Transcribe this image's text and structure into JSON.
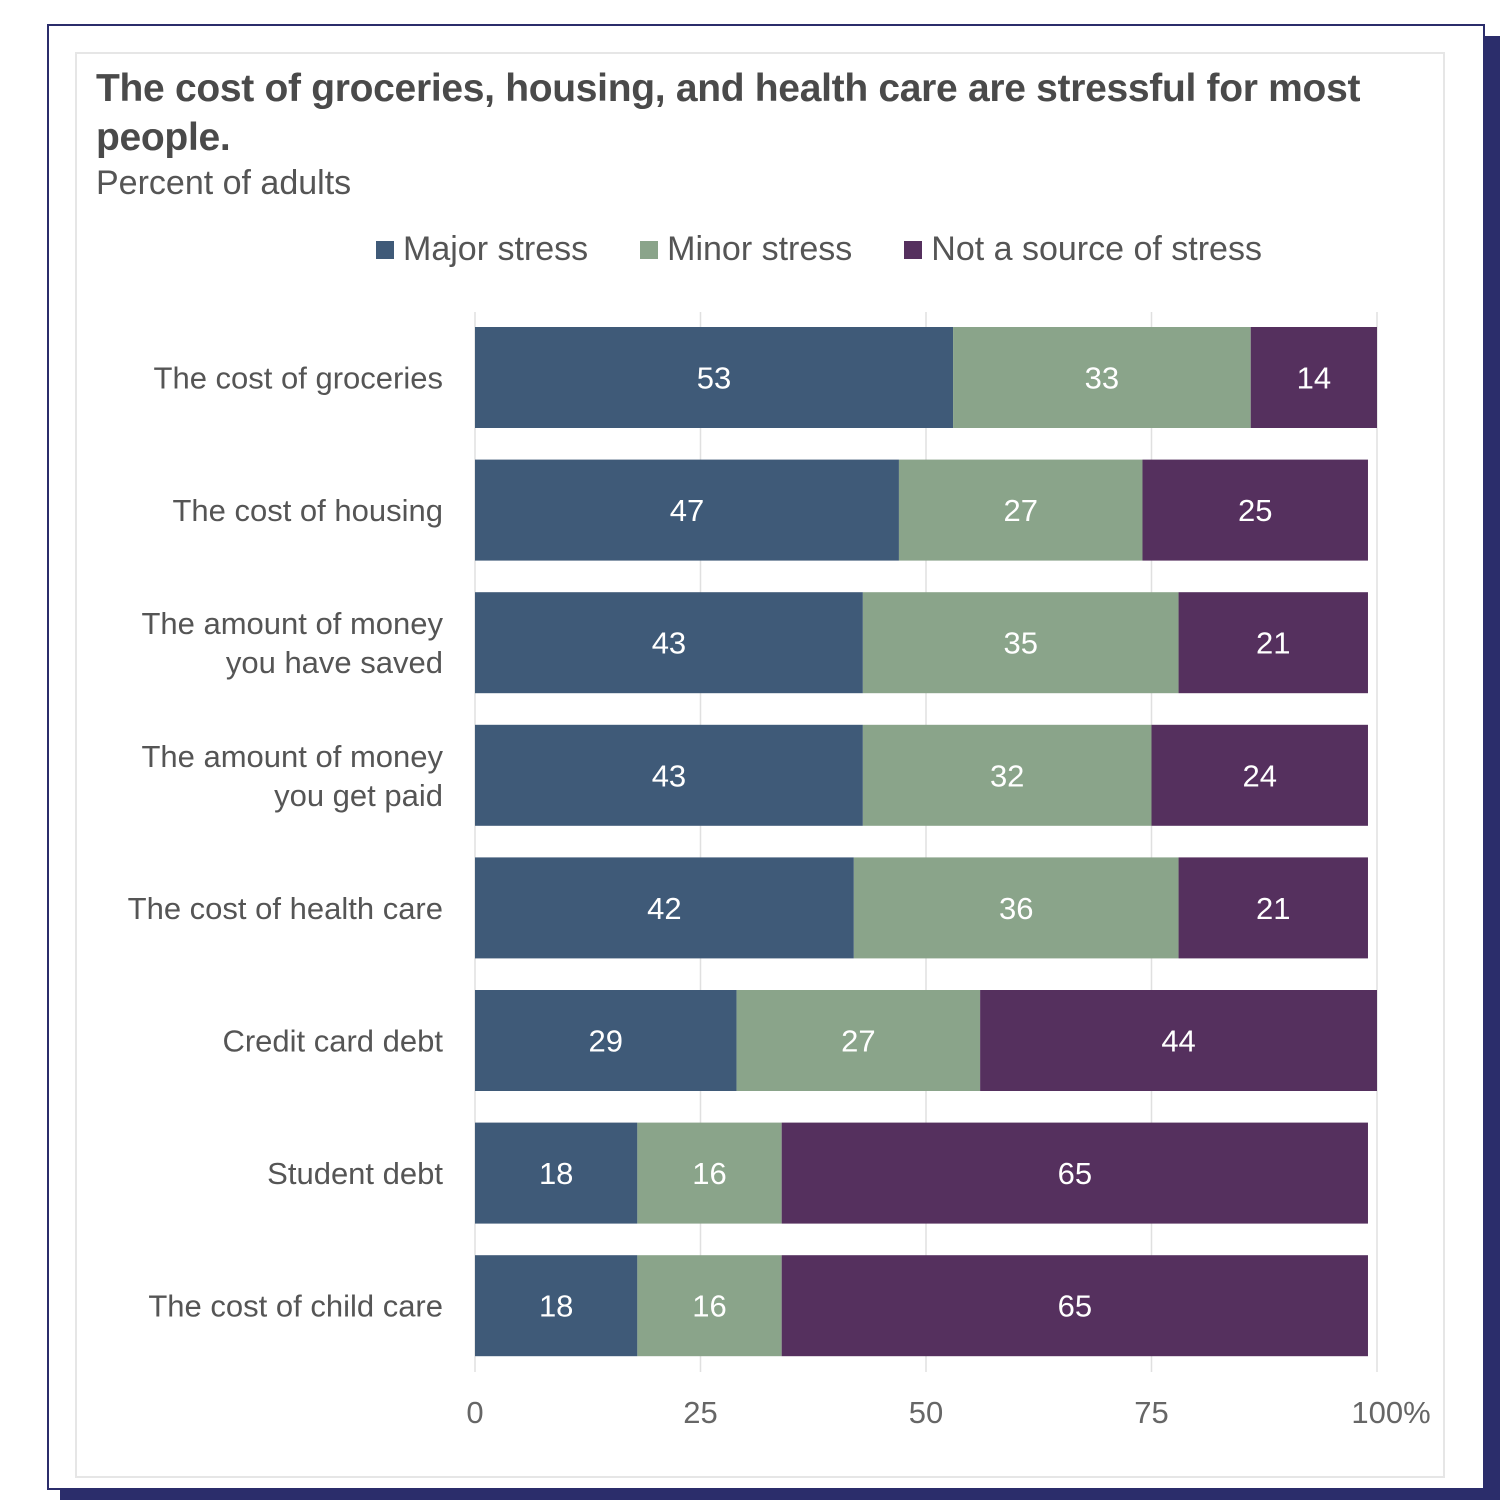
{
  "chart_data": {
    "type": "bar",
    "orientation": "horizontal",
    "stacked": true,
    "title": "The cost of groceries, housing, and health care are stressful for most people.",
    "subtitle": "Percent of adults",
    "xlabel": "",
    "ylabel": "",
    "xlim": [
      0,
      100
    ],
    "x_ticks": [
      {
        "value": 0,
        "label": "0"
      },
      {
        "value": 25,
        "label": "25"
      },
      {
        "value": 50,
        "label": "50"
      },
      {
        "value": 75,
        "label": "75"
      },
      {
        "value": 100,
        "label": "100%"
      }
    ],
    "grid": true,
    "legend_position": "top",
    "categories": [
      [
        "The cost of groceries"
      ],
      [
        "The cost of housing"
      ],
      [
        "The amount of money",
        "you have saved"
      ],
      [
        "The amount of money",
        "you get paid"
      ],
      [
        "The cost of health care"
      ],
      [
        "Credit card debt"
      ],
      [
        "Student debt"
      ],
      [
        "The cost of child care"
      ]
    ],
    "series": [
      {
        "name": "Major stress",
        "color": "#3f5a78",
        "values": [
          53,
          47,
          43,
          43,
          42,
          29,
          18,
          18
        ]
      },
      {
        "name": "Minor stress",
        "color": "#8aa48a",
        "values": [
          33,
          27,
          35,
          32,
          36,
          27,
          16,
          16
        ]
      },
      {
        "name": "Not a source of stress",
        "color": "#55305e",
        "values": [
          14,
          25,
          21,
          24,
          21,
          44,
          65,
          65
        ]
      }
    ]
  },
  "colors": {
    "frame": "#2b2d6b",
    "title_text": "#4a4a4a",
    "body_text": "#555555",
    "gridline": "#e0e0e0",
    "bar_label": "#ffffff"
  }
}
